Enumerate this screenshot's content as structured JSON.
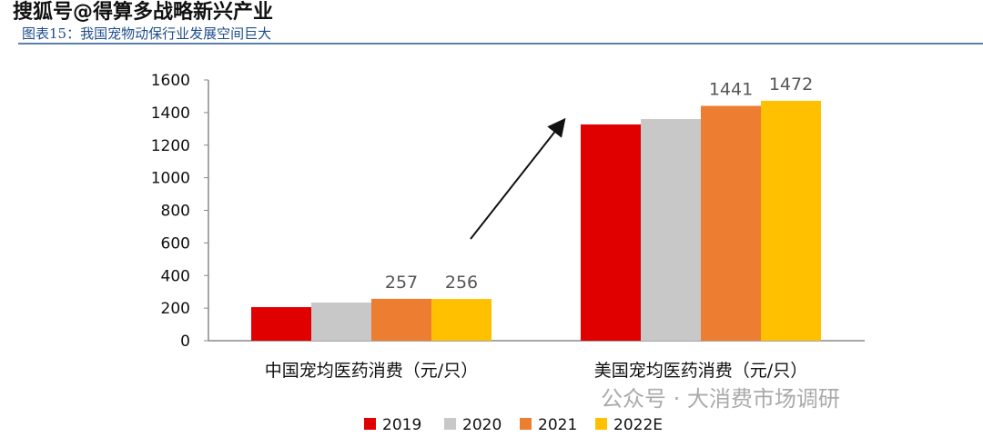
{
  "watermark": "搜狐号@得算多战略新兴产业",
  "watermark_bottom": "公众号 · 大消费市场调研",
  "chart_data": {
    "type": "bar",
    "title": "图表15：我国宠物动保行业发展空间巨大",
    "categories": [
      "中国宠均医药消费（元/只）",
      "美国宠均医药消费（元/只）"
    ],
    "series": [
      {
        "name": "2019",
        "color": "#e00000",
        "values": [
          206,
          1327
        ]
      },
      {
        "name": "2020",
        "color": "#c8c8c8",
        "values": [
          234,
          1360
        ]
      },
      {
        "name": "2021",
        "color": "#ed7d31",
        "values": [
          257,
          1441
        ]
      },
      {
        "name": "2022E",
        "color": "#ffc000",
        "values": [
          256,
          1472
        ]
      }
    ],
    "data_labels": {
      "2021": [
        "257",
        "1441"
      ],
      "2022E": [
        "256",
        "1472"
      ]
    },
    "ylim": [
      0,
      1600
    ],
    "yticks": [
      0,
      200,
      400,
      600,
      800,
      1000,
      1200,
      1400,
      1600
    ],
    "grid": false,
    "legend": "bottom",
    "annotation": "arrow from China group to US group"
  }
}
